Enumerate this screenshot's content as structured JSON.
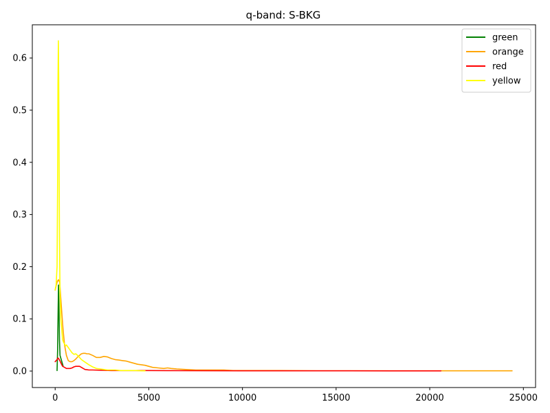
{
  "chart_data": {
    "type": "line",
    "title": "q-band: S-BKG",
    "xlabel": "",
    "ylabel": "",
    "xlim": [
      -1220,
      25650
    ],
    "ylim": [
      -0.0316,
      0.6636
    ],
    "xticks": [
      0,
      5000,
      10000,
      15000,
      20000,
      25000
    ],
    "yticks": [
      0.0,
      0.1,
      0.2,
      0.3,
      0.4,
      0.5,
      0.6
    ],
    "xtick_labels": [
      "0",
      "5000",
      "10000",
      "15000",
      "20000",
      "25000"
    ],
    "ytick_labels": [
      "0.0",
      "0.1",
      "0.2",
      "0.3",
      "0.4",
      "0.5",
      "0.6"
    ],
    "legend_position": "top-right",
    "series": [
      {
        "name": "green",
        "color": "#008000",
        "x": [
          100,
          130,
          160,
          180,
          200,
          230,
          260,
          300,
          340,
          380,
          420
        ],
        "y": [
          0.001,
          0.04,
          0.12,
          0.165,
          0.13,
          0.06,
          0.03,
          0.025,
          0.02,
          0.015,
          0.01
        ]
      },
      {
        "name": "orange",
        "color": "#ffa500",
        "x": [
          0,
          60,
          120,
          180,
          240,
          300,
          360,
          420,
          500,
          600,
          700,
          800,
          900,
          1000,
          1100,
          1200,
          1300,
          1400,
          1500,
          1600,
          1700,
          1800,
          2000,
          2200,
          2400,
          2600,
          2800,
          3000,
          3200,
          3400,
          3600,
          3800,
          4000,
          4200,
          4400,
          4600,
          4800,
          5000,
          5200,
          5500,
          5800,
          6000,
          6200,
          6500,
          7000,
          7500,
          8000,
          8500,
          9000,
          9500,
          10000,
          11000,
          12000,
          14000,
          16000,
          18000,
          20000,
          22000,
          24400
        ],
        "y": [
          0.155,
          0.165,
          0.172,
          0.175,
          0.17,
          0.14,
          0.11,
          0.08,
          0.05,
          0.03,
          0.02,
          0.018,
          0.018,
          0.02,
          0.023,
          0.027,
          0.03,
          0.033,
          0.034,
          0.034,
          0.033,
          0.033,
          0.03,
          0.026,
          0.026,
          0.028,
          0.027,
          0.024,
          0.022,
          0.021,
          0.02,
          0.019,
          0.017,
          0.015,
          0.013,
          0.012,
          0.011,
          0.009,
          0.007,
          0.006,
          0.005,
          0.006,
          0.005,
          0.004,
          0.003,
          0.002,
          0.002,
          0.002,
          0.002,
          0.001,
          0.001,
          0.001,
          0.001,
          0.0005,
          0.0005,
          0.0005,
          0.0005,
          0.0005,
          0.0005
        ]
      },
      {
        "name": "red",
        "color": "#ff0000",
        "x": [
          0,
          50,
          100,
          150,
          200,
          250,
          300,
          350,
          400,
          500,
          600,
          700,
          800,
          900,
          1000,
          1100,
          1200,
          1300,
          1400,
          1500,
          1600,
          1800,
          2000,
          2500,
          3000,
          3500,
          4000,
          5000,
          6000,
          8000,
          10000,
          12000,
          15000,
          18000,
          20600
        ],
        "y": [
          0.018,
          0.02,
          0.022,
          0.025,
          0.023,
          0.02,
          0.016,
          0.012,
          0.009,
          0.007,
          0.005,
          0.005,
          0.005,
          0.006,
          0.008,
          0.009,
          0.009,
          0.009,
          0.007,
          0.005,
          0.003,
          0.002,
          0.002,
          0.0015,
          0.001,
          0.001,
          0.001,
          0.001,
          0.0008,
          0.0006,
          0.0005,
          0.0005,
          0.0004,
          0.0003,
          0.0003
        ]
      },
      {
        "name": "yellow",
        "color": "#ffff00",
        "x": [
          0,
          50,
          100,
          130,
          150,
          170,
          190,
          210,
          230,
          260,
          300,
          350,
          400,
          450,
          500,
          550,
          600,
          700,
          800,
          900,
          1000,
          1100,
          1200,
          1400,
          1600,
          1800,
          2000,
          2200,
          2400,
          2600,
          2800,
          3000,
          3200,
          3500,
          3800,
          4000,
          4300,
          4600,
          4800
        ],
        "y": [
          0.155,
          0.165,
          0.2,
          0.36,
          0.55,
          0.633,
          0.56,
          0.4,
          0.25,
          0.15,
          0.1,
          0.08,
          0.06,
          0.055,
          0.052,
          0.048,
          0.05,
          0.045,
          0.04,
          0.035,
          0.032,
          0.033,
          0.03,
          0.022,
          0.017,
          0.012,
          0.008,
          0.005,
          0.004,
          0.003,
          0.002,
          0.002,
          0.002,
          0.001,
          0.001,
          0.001,
          0.001,
          0.0005,
          0.0005
        ]
      }
    ]
  }
}
